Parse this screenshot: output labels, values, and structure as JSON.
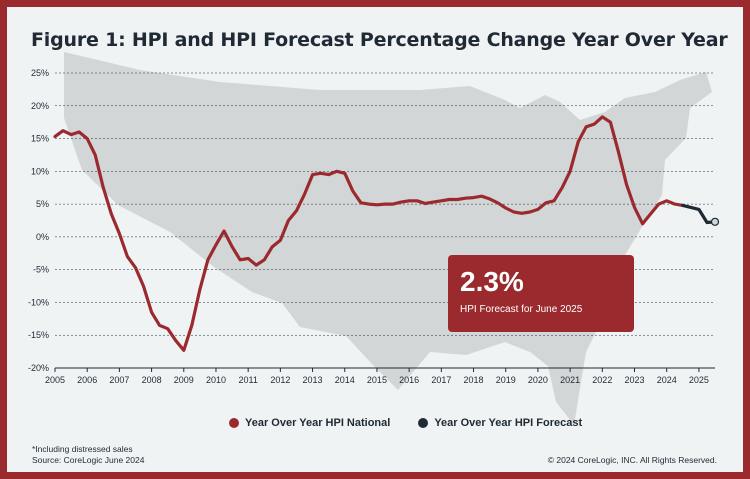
{
  "title": "Figure 1: HPI and HPI Forecast Percentage Change Year Over Year",
  "callout": {
    "value": "2.3%",
    "label": "HPI Forecast for June 2025"
  },
  "legend": {
    "national": "Year Over Year HPI National",
    "forecast": "Year Over Year HPI Forecast"
  },
  "footnote": {
    "line1": "*Including distressed sales",
    "line2": "Source: CoreLogic June 2024"
  },
  "copyright": "© 2024 CoreLogic, INC. All Rights Reserved.",
  "colors": {
    "border": "#9b2a2e",
    "national": "#9b2a2e",
    "forecast": "#1f2a35",
    "background": "#eff3f3",
    "map": "#d3d6d7",
    "grid": "#1f2a35"
  },
  "chart_data": {
    "type": "line",
    "title": "Figure 1: HPI and HPI Forecast Percentage Change Year Over Year",
    "xlim": [
      2005,
      2025.5
    ],
    "ylim": [
      -20,
      25
    ],
    "x_ticks": [
      "2005",
      "2006",
      "2007",
      "2008",
      "2009",
      "2010",
      "2011",
      "2012",
      "2013",
      "2014",
      "2015",
      "2016",
      "2017",
      "2018",
      "2019",
      "2020",
      "2021",
      "2022",
      "2023",
      "2024",
      "2025"
    ],
    "y_ticks": [
      "25%",
      "20%",
      "15%",
      "10%",
      "5%",
      "0%",
      "-5%",
      "-10%",
      "-15%",
      "-20%"
    ],
    "grid": "horizontal",
    "legend_position": "bottom",
    "series": [
      {
        "name": "Year Over Year HPI National",
        "points": [
          [
            2005.0,
            15.3
          ],
          [
            2005.25,
            16.2
          ],
          [
            2005.5,
            15.6
          ],
          [
            2005.75,
            16.0
          ],
          [
            2006.0,
            15.0
          ],
          [
            2006.25,
            12.5
          ],
          [
            2006.5,
            7.5
          ],
          [
            2006.75,
            3.5
          ],
          [
            2007.0,
            0.5
          ],
          [
            2007.25,
            -3.0
          ],
          [
            2007.5,
            -4.7
          ],
          [
            2007.75,
            -7.5
          ],
          [
            2008.0,
            -11.5
          ],
          [
            2008.25,
            -13.5
          ],
          [
            2008.5,
            -14.0
          ],
          [
            2008.75,
            -15.8
          ],
          [
            2009.0,
            -17.3
          ],
          [
            2009.25,
            -13.5
          ],
          [
            2009.5,
            -8.0
          ],
          [
            2009.75,
            -3.5
          ],
          [
            2010.0,
            -1.2
          ],
          [
            2010.25,
            0.9
          ],
          [
            2010.5,
            -1.5
          ],
          [
            2010.75,
            -3.5
          ],
          [
            2011.0,
            -3.3
          ],
          [
            2011.25,
            -4.3
          ],
          [
            2011.5,
            -3.5
          ],
          [
            2011.75,
            -1.5
          ],
          [
            2012.0,
            -0.5
          ],
          [
            2012.25,
            2.5
          ],
          [
            2012.5,
            4.0
          ],
          [
            2012.75,
            6.5
          ],
          [
            2013.0,
            9.5
          ],
          [
            2013.25,
            9.7
          ],
          [
            2013.5,
            9.5
          ],
          [
            2013.75,
            10.0
          ],
          [
            2014.0,
            9.7
          ],
          [
            2014.25,
            7.0
          ],
          [
            2014.5,
            5.2
          ],
          [
            2014.75,
            5.0
          ],
          [
            2015.0,
            4.9
          ],
          [
            2015.25,
            5.0
          ],
          [
            2015.5,
            5.0
          ],
          [
            2015.75,
            5.3
          ],
          [
            2016.0,
            5.5
          ],
          [
            2016.25,
            5.5
          ],
          [
            2016.5,
            5.1
          ],
          [
            2016.75,
            5.3
          ],
          [
            2017.0,
            5.5
          ],
          [
            2017.25,
            5.7
          ],
          [
            2017.5,
            5.7
          ],
          [
            2017.75,
            5.9
          ],
          [
            2018.0,
            6.0
          ],
          [
            2018.25,
            6.2
          ],
          [
            2018.5,
            5.8
          ],
          [
            2018.75,
            5.2
          ],
          [
            2019.0,
            4.4
          ],
          [
            2019.25,
            3.8
          ],
          [
            2019.5,
            3.6
          ],
          [
            2019.75,
            3.8
          ],
          [
            2020.0,
            4.2
          ],
          [
            2020.25,
            5.2
          ],
          [
            2020.5,
            5.5
          ],
          [
            2020.75,
            7.5
          ],
          [
            2021.0,
            10.0
          ],
          [
            2021.25,
            14.5
          ],
          [
            2021.5,
            16.8
          ],
          [
            2021.75,
            17.2
          ],
          [
            2022.0,
            18.3
          ],
          [
            2022.25,
            17.5
          ],
          [
            2022.5,
            13.0
          ],
          [
            2022.75,
            8.0
          ],
          [
            2023.0,
            4.5
          ],
          [
            2023.25,
            2.0
          ],
          [
            2023.5,
            3.5
          ],
          [
            2023.75,
            5.0
          ],
          [
            2024.0,
            5.5
          ],
          [
            2024.25,
            5.0
          ],
          [
            2024.5,
            4.8
          ]
        ]
      },
      {
        "name": "Year Over Year HPI Forecast",
        "points": [
          [
            2024.5,
            4.8
          ],
          [
            2024.75,
            4.5
          ],
          [
            2025.0,
            4.2
          ],
          [
            2025.25,
            2.2
          ],
          [
            2025.5,
            2.3
          ]
        ]
      }
    ],
    "annotation": {
      "text": "2.3%",
      "subtext": "HPI Forecast for June 2025"
    }
  }
}
